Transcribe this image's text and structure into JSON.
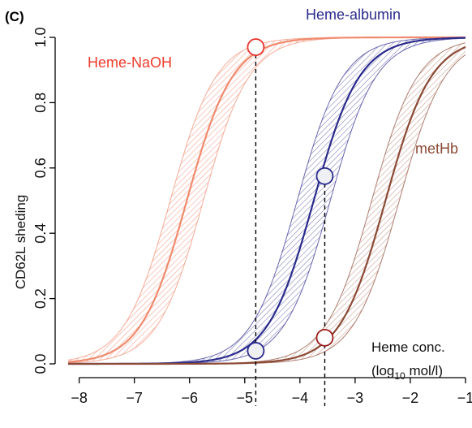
{
  "chart_data": {
    "type": "line",
    "panel_label": "(C)",
    "title": "",
    "xlabel": "",
    "ylabel": "CD62L sheding",
    "xlim": [
      -8.2,
      -1
    ],
    "ylim": [
      0,
      1
    ],
    "x_ticks": [
      -8,
      -7,
      -6,
      -5,
      -4,
      -3,
      -2,
      -1
    ],
    "y_ticks": [
      0.0,
      0.2,
      0.4,
      0.6,
      0.8,
      1.0
    ],
    "x_tick_labels": [
      "−8",
      "−7",
      "−6",
      "−5",
      "−4",
      "−3",
      "−2",
      "−1"
    ],
    "y_tick_labels": [
      "0.0",
      "0.2",
      "0.4",
      "0.6",
      "0.8",
      "1.0"
    ],
    "grid": false,
    "annotation": {
      "line1": "Heme conc.",
      "line2_prefix": "(log",
      "line2_sub": "10",
      "line2_suffix": " mol/l)"
    },
    "series": [
      {
        "name": "Heme-NaOH",
        "color": "#f08a6e",
        "label_color": "#ef3b2c",
        "ec50": -6.05,
        "hill_slope": 2.4,
        "band_ec50": [
          -6.35,
          -5.75
        ],
        "marker": {
          "x": -4.8,
          "y": 0.97,
          "style": "open-red"
        }
      },
      {
        "name": "Heme-albumin",
        "color": "#2b2b8c",
        "label_color": "#2b2b8c",
        "ec50": -3.75,
        "hill_slope": 2.4,
        "band_ec50": [
          -4.05,
          -3.45
        ],
        "marker_points": [
          {
            "x": -4.8,
            "y": 0.04
          },
          {
            "x": -3.55,
            "y": 0.575
          }
        ]
      },
      {
        "name": "metHb",
        "color": "#8b4a36",
        "label_color": "#8b4a36",
        "ec50": -2.45,
        "hill_slope": 2.4,
        "band_ec50": [
          -2.7,
          -2.2
        ],
        "marker": {
          "x": -3.55,
          "y": 0.08,
          "style": "open-darkred"
        }
      }
    ],
    "reference_lines_x": [
      -4.8,
      -3.55
    ]
  }
}
